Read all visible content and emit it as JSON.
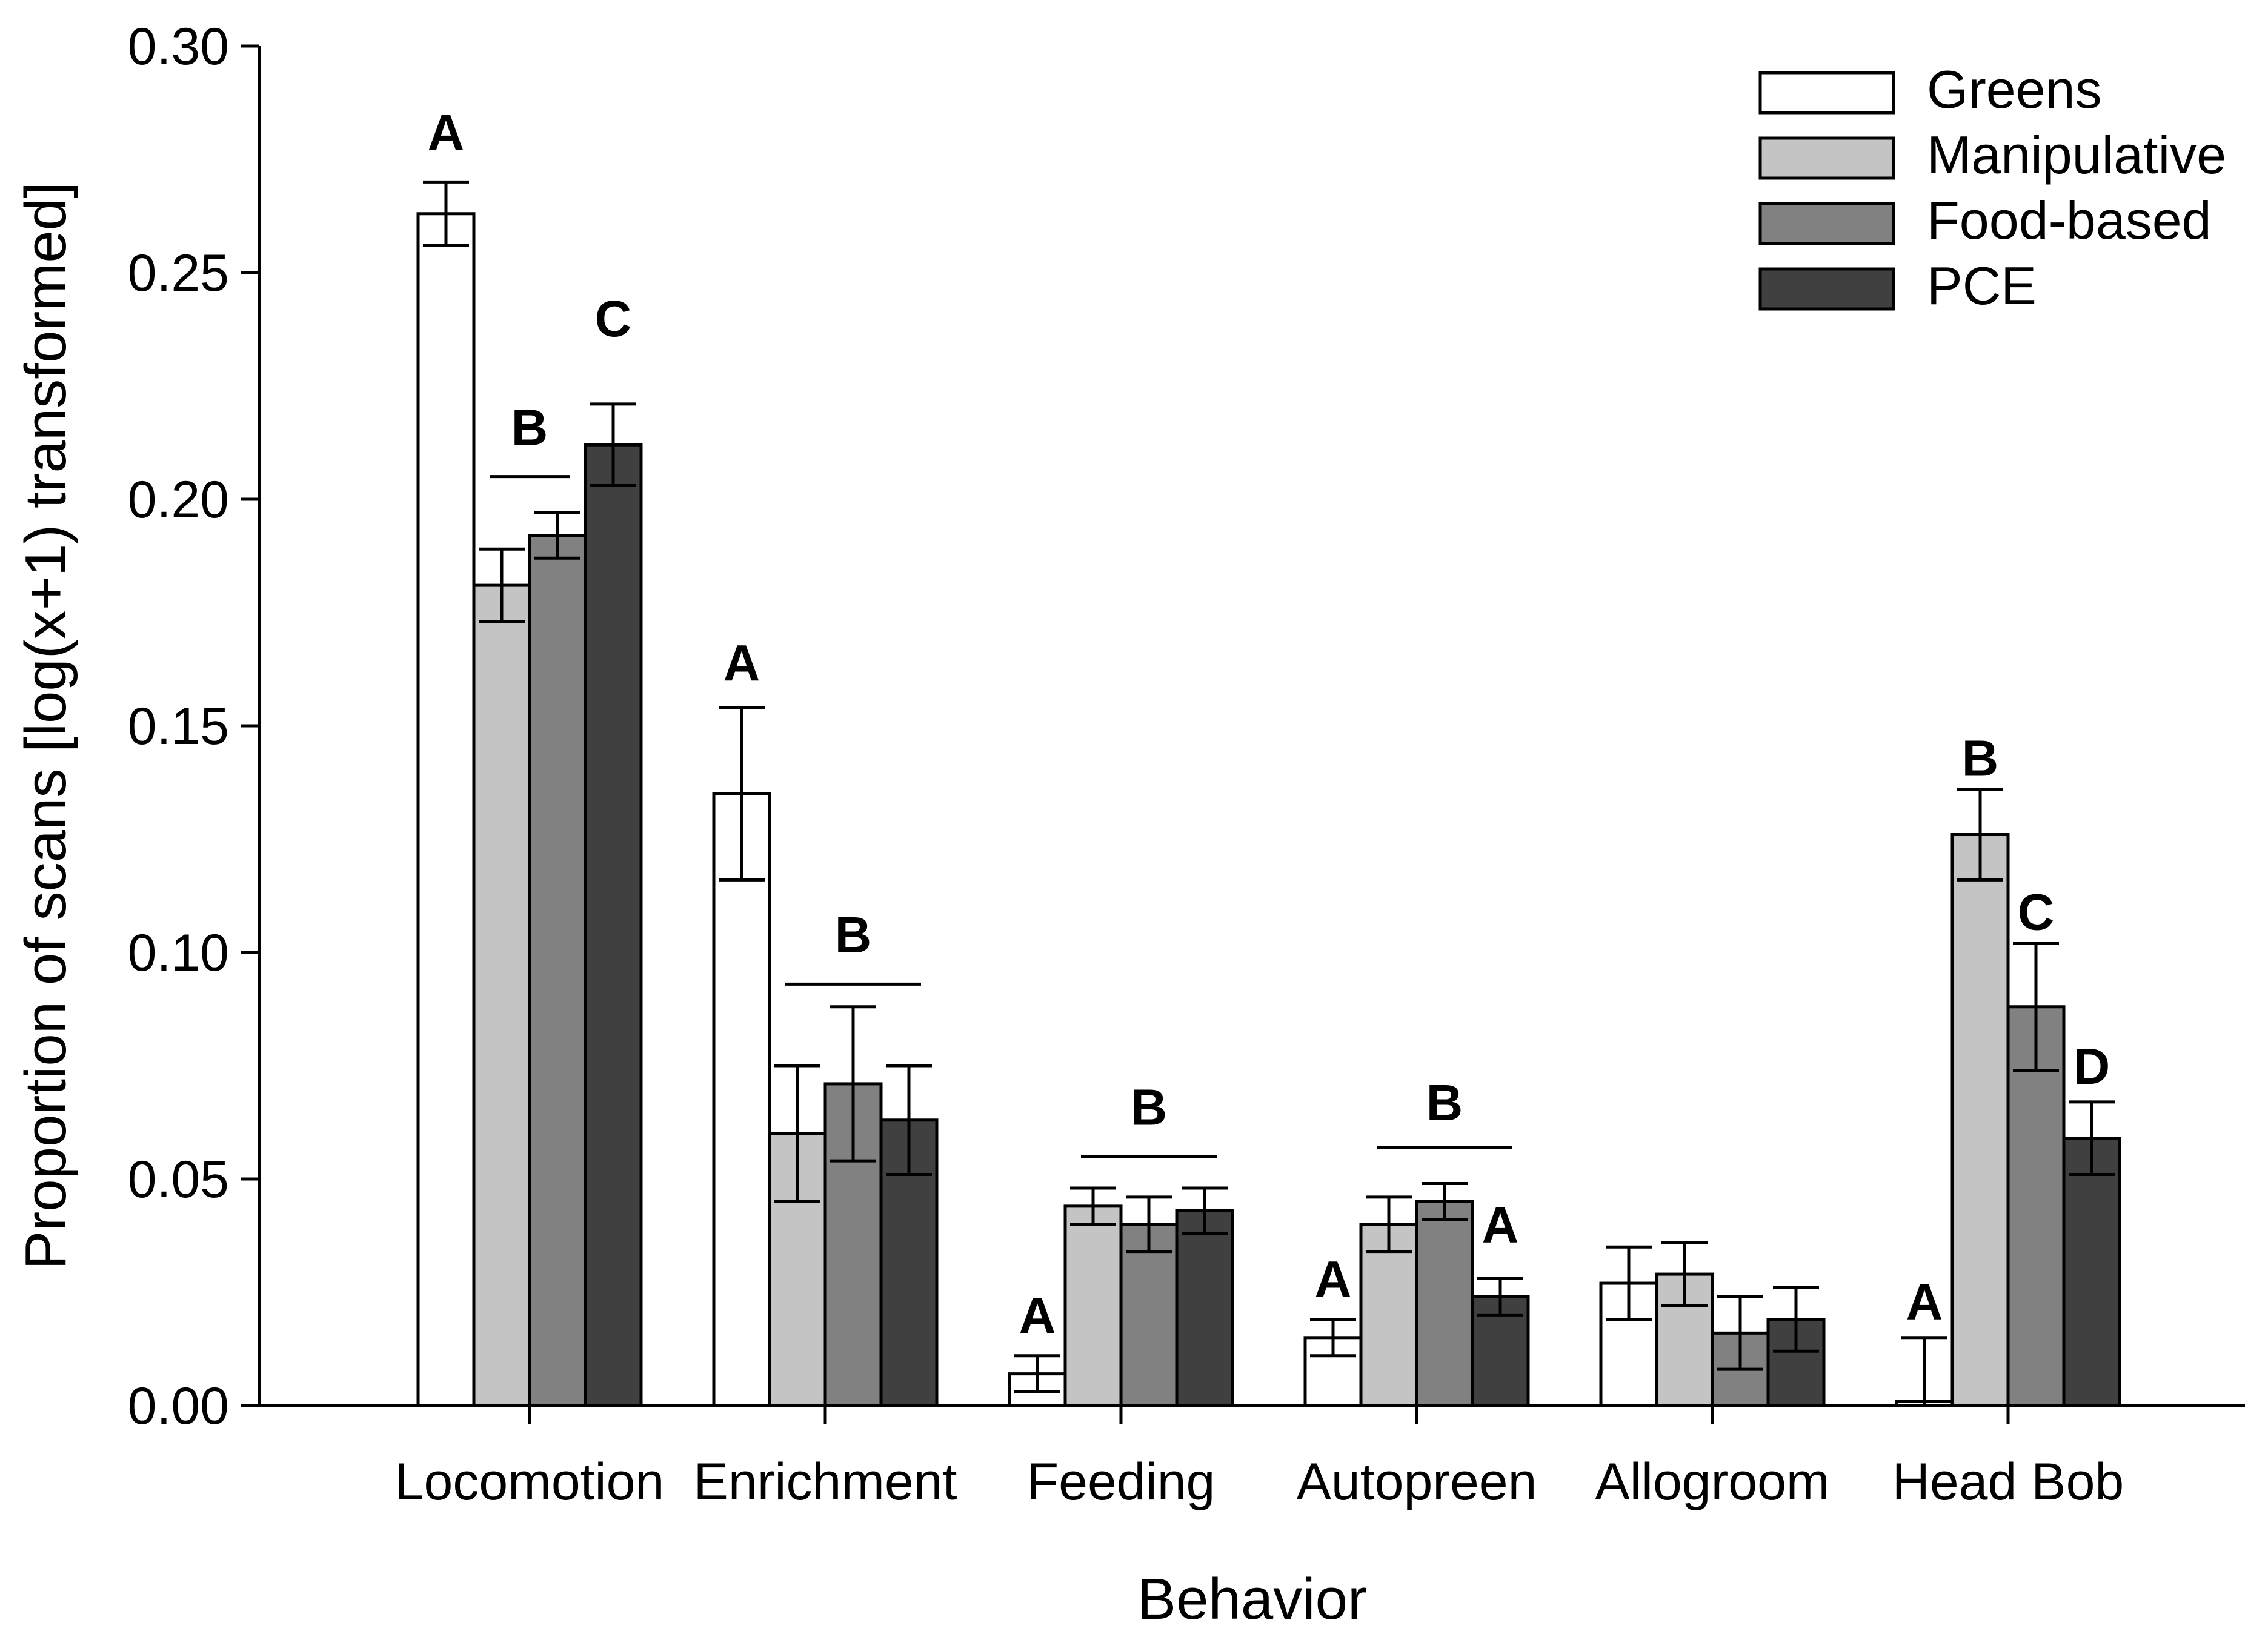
{
  "chart_data": {
    "type": "bar",
    "title": "",
    "xlabel": "Behavior",
    "ylabel": "Proportion of scans [log(x+1) transformed]",
    "ylim": [
      0,
      0.3
    ],
    "yticks": [
      "0.00",
      "0.05",
      "0.10",
      "0.15",
      "0.20",
      "0.25",
      "0.30"
    ],
    "categories": [
      "Locomotion",
      "Enrichment",
      "Feeding",
      "Autopreen",
      "Allogroom",
      "Head Bob"
    ],
    "legend_position": "top-right",
    "series": [
      {
        "name": "Greens",
        "color": "#ffffff",
        "values": [
          0.263,
          0.135,
          0.007,
          0.015,
          0.027,
          0.001
        ],
        "errors": [
          0.007,
          0.019,
          0.004,
          0.004,
          0.008,
          0.014
        ]
      },
      {
        "name": "Manipulative",
        "color": "#c4c4c4",
        "values": [
          0.181,
          0.06,
          0.044,
          0.04,
          0.029,
          0.126
        ],
        "errors": [
          0.008,
          0.015,
          0.004,
          0.006,
          0.007,
          0.01
        ]
      },
      {
        "name": "Food-based",
        "color": "#818181",
        "values": [
          0.192,
          0.071,
          0.04,
          0.045,
          0.016,
          0.088
        ],
        "errors": [
          0.005,
          0.017,
          0.006,
          0.004,
          0.008,
          0.014
        ]
      },
      {
        "name": "PCE",
        "color": "#404040",
        "values": [
          0.212,
          0.063,
          0.043,
          0.024,
          0.019,
          0.059
        ],
        "errors": [
          0.009,
          0.012,
          0.005,
          0.004,
          0.007,
          0.008
        ]
      }
    ],
    "annotations": [
      {
        "text": "A",
        "category": 0,
        "series": 0,
        "y": 0.281
      },
      {
        "text": "B",
        "category": 0,
        "series": 1.5,
        "y": 0.216,
        "line_y": 0.205,
        "line_from": 1,
        "line_to": 2
      },
      {
        "text": "C",
        "category": 0,
        "series": 3,
        "y": 0.24
      },
      {
        "text": "A",
        "category": 1,
        "series": 0,
        "y": 0.164
      },
      {
        "text": "B",
        "category": 1,
        "series": 2,
        "y": 0.104,
        "line_y": 0.093,
        "line_from": 1,
        "line_to": 3
      },
      {
        "text": "A",
        "category": 2,
        "series": 0,
        "y": 0.02
      },
      {
        "text": "B",
        "category": 2,
        "series": 2,
        "y": 0.066,
        "line_y": 0.055,
        "line_from": 1,
        "line_to": 3
      },
      {
        "text": "A",
        "category": 3,
        "series": 0,
        "y": 0.028
      },
      {
        "text": "B",
        "category": 3,
        "series": 2,
        "y": 0.067,
        "line_y": 0.057,
        "line_from": 1,
        "line_to": 3
      },
      {
        "text": "A",
        "category": 3,
        "series": 3,
        "y": 0.04
      },
      {
        "text": "A",
        "category": 5,
        "series": 0,
        "y": 0.023
      },
      {
        "text": "B",
        "category": 5,
        "series": 1,
        "y": 0.143
      },
      {
        "text": "C",
        "category": 5,
        "series": 2,
        "y": 0.109
      },
      {
        "text": "D",
        "category": 5,
        "series": 3,
        "y": 0.075
      }
    ]
  }
}
